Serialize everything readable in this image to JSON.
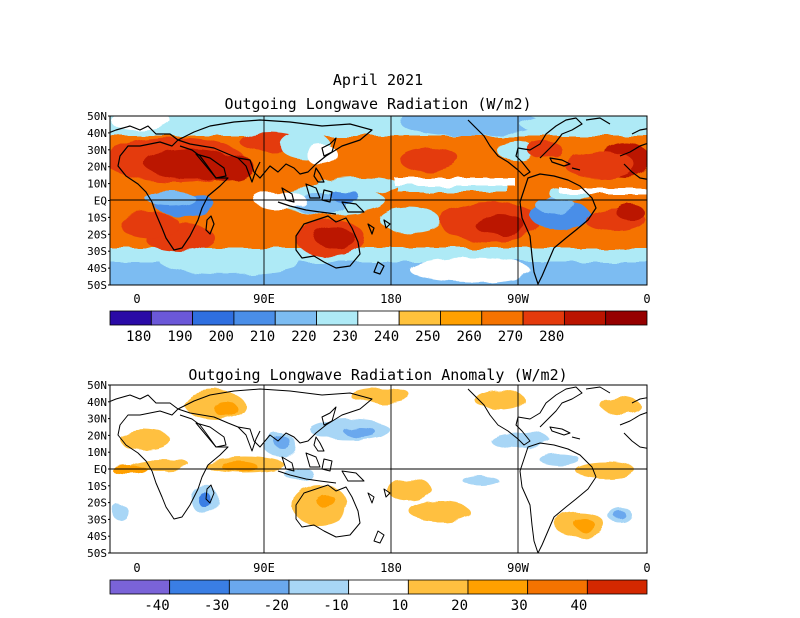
{
  "figure": {
    "title": "April 2021",
    "colors": {
      "ocean_cool": "#9fe8f5",
      "land_outline": "#000000"
    }
  },
  "panels": [
    {
      "id": "olr",
      "subtitle": "Outgoing Longwave Radiation (W/m2)",
      "lat_labels": [
        "50N",
        "40N",
        "30N",
        "20N",
        "10N",
        "EQ",
        "10S",
        "20S",
        "30S",
        "40S",
        "50S"
      ],
      "lon_labels": [
        "0",
        "90E",
        "180",
        "90W",
        "0"
      ],
      "colorbar": {
        "colors": [
          "#2a0aa6",
          "#6b58d8",
          "#2f6fe0",
          "#4a8ee8",
          "#7cbcf2",
          "#aeeaf6",
          "#ffffff",
          "#ffc23c",
          "#ffa000",
          "#f57300",
          "#e43a0c",
          "#bb1400",
          "#960000"
        ],
        "labels": [
          "180",
          "190",
          "200",
          "210",
          "220",
          "230",
          "240",
          "250",
          "260",
          "270",
          "280"
        ]
      }
    },
    {
      "id": "anomaly",
      "subtitle": "Outgoing Longwave Radiation Anomaly (W/m2)",
      "lat_labels": [
        "50N",
        "40N",
        "30N",
        "20N",
        "10N",
        "EQ",
        "10S",
        "20S",
        "30S",
        "40S",
        "50S"
      ],
      "lon_labels": [
        "0",
        "90E",
        "180",
        "90W",
        "0"
      ],
      "colorbar": {
        "colors": [
          "#7a63d8",
          "#3a7ee4",
          "#6aa8ee",
          "#a8d6f6",
          "#ffffff",
          "#ffc040",
          "#ffa000",
          "#f57300",
          "#d42800"
        ],
        "labels": [
          "-40",
          "-30",
          "-20",
          "-10",
          "10",
          "20",
          "30",
          "40"
        ]
      }
    }
  ]
}
